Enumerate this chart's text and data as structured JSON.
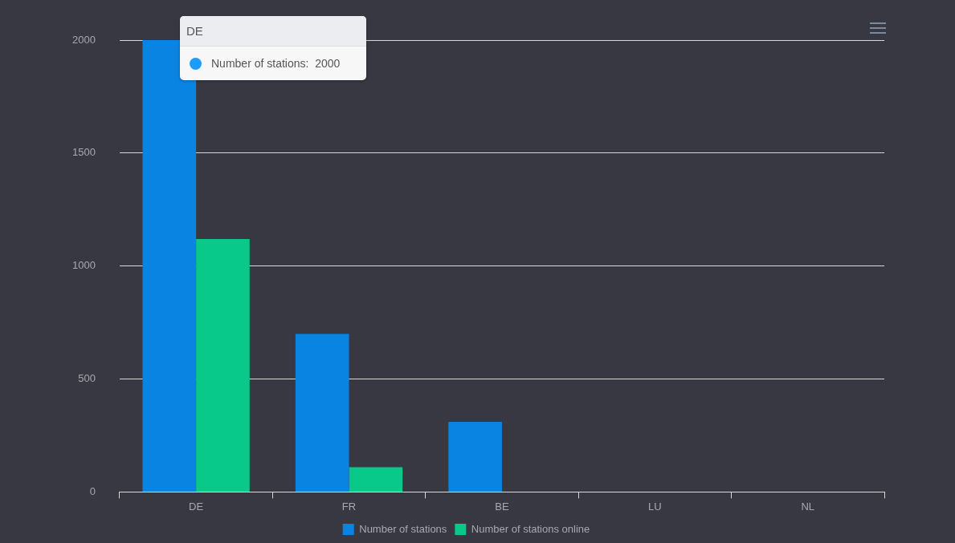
{
  "chart_data": {
    "type": "bar",
    "categories": [
      "DE",
      "FR",
      "BE",
      "LU",
      "NL"
    ],
    "series": [
      {
        "name": "Number of stations",
        "color": "#0984e3",
        "values": [
          2000,
          700,
          310,
          0,
          0
        ]
      },
      {
        "name": "Number of stations online",
        "color": "#08c98a",
        "values": [
          1120,
          110,
          0,
          0,
          0
        ]
      }
    ],
    "ylim": [
      0,
      2000
    ],
    "yticks": [
      0,
      500,
      1000,
      1500,
      2000
    ],
    "grid": "y",
    "legend": "bottom",
    "annotations": [
      "DE",
      "Number of stations:  2000"
    ]
  }
}
